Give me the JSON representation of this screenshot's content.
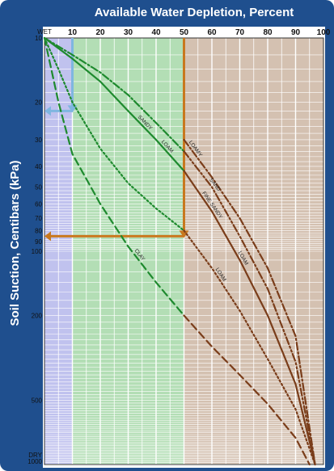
{
  "chart_data": {
    "type": "line",
    "title": "Available Water Depletion, Percent",
    "ylabel": "Soil Suction, Centibars (kPa)",
    "xlabel": "",
    "xlim": [
      0,
      100
    ],
    "x_ticks": [
      10,
      20,
      30,
      40,
      50,
      60,
      70,
      80,
      90,
      100
    ],
    "x_start_label": "WET",
    "ylim": [
      10,
      1000
    ],
    "y_scale": "log",
    "y_ticks": [
      {
        "value": 10,
        "label": "10"
      },
      {
        "value": 20,
        "label": "20"
      },
      {
        "value": 30,
        "label": "30"
      },
      {
        "value": 40,
        "label": "40"
      },
      {
        "value": 50,
        "label": "50"
      },
      {
        "value": 60,
        "label": "60"
      },
      {
        "value": 70,
        "label": "70"
      },
      {
        "value": 80,
        "label": "80"
      },
      {
        "value": 90,
        "label": "90"
      },
      {
        "value": 100,
        "label": "100"
      },
      {
        "value": 200,
        "label": "200"
      },
      {
        "value": 500,
        "label": "500"
      },
      {
        "value": 1000,
        "label": "1000"
      }
    ],
    "y_dry_label": "DRY",
    "series": [
      {
        "name": "SANDY",
        "color": "#1e8a2e",
        "dash": "solid",
        "x": [
          0,
          10,
          20,
          30,
          40,
          50
        ],
        "y": [
          10,
          12.5,
          16,
          22,
          30,
          42
        ]
      },
      {
        "name": "LOAM",
        "color": "#1e8a2e",
        "dash": "dashdot",
        "x": [
          0,
          10,
          20,
          30,
          40,
          50
        ],
        "y": [
          10,
          12,
          14.5,
          18.5,
          25,
          34
        ]
      },
      {
        "name": "CLAY",
        "color": "#1e8a2e",
        "dash": "dash",
        "x": [
          0,
          5,
          10,
          20,
          30,
          40,
          50
        ],
        "y": [
          10,
          20,
          35,
          60,
          95,
          140,
          200
        ]
      },
      {
        "name": "CLAY",
        "color": "#1e8a2e",
        "dash": "dot",
        "x": [
          0,
          5,
          10,
          20,
          30,
          40,
          50
        ],
        "y": [
          10,
          14,
          20,
          33,
          48,
          63,
          80
        ]
      },
      {
        "name": "LOAMY SAND",
        "color": "#7a3d1a",
        "dash": "dashdot",
        "x": [
          50,
          60,
          70,
          80,
          90,
          97
        ],
        "y": [
          30,
          45,
          70,
          120,
          250,
          1000
        ]
      },
      {
        "name": "SAND",
        "color": "#7a3d1a",
        "dash": "dashdotdot",
        "x": [
          50,
          60,
          70,
          80,
          90,
          97
        ],
        "y": [
          34,
          50,
          85,
          150,
          330,
          1000
        ]
      },
      {
        "name": "FINE SANDY LOAM",
        "color": "#7a3d1a",
        "dash": "solid",
        "x": [
          50,
          60,
          70,
          80,
          90,
          97
        ],
        "y": [
          42,
          65,
          110,
          200,
          420,
          1000
        ]
      },
      {
        "name": "LOAM",
        "color": "#7a3d1a",
        "dash": "dot",
        "x": [
          50,
          60,
          70,
          80,
          90,
          97
        ],
        "y": [
          80,
          120,
          190,
          320,
          550,
          1000
        ]
      },
      {
        "name": "CLAY",
        "color": "#7a3d1a",
        "dash": "dash",
        "x": [
          50,
          60,
          70,
          80,
          90,
          95
        ],
        "y": [
          200,
          280,
          380,
          520,
          750,
          1000
        ]
      }
    ],
    "guides": [
      {
        "kind": "vertical",
        "color": "#7fb6e0",
        "x": 10,
        "y": [
          10,
          22
        ]
      },
      {
        "kind": "horizontal",
        "color": "#7fb6e0",
        "x": [
          0,
          10
        ],
        "y": 22
      },
      {
        "kind": "vertical",
        "color": "#c8781e",
        "x": 50,
        "y": [
          10,
          85
        ]
      },
      {
        "kind": "horizontal",
        "color": "#c8781e",
        "x": [
          0,
          50
        ],
        "y": 85
      }
    ],
    "colors": {
      "frame": "#1f4f8e",
      "band_blue": "#8c8fe0",
      "band_green": "#49b04f",
      "band_brown": "#a07552",
      "grid": "#ffffff"
    },
    "labels": [
      {
        "text": "SANDY",
        "series": 0,
        "at": 35
      },
      {
        "text": "LOAM",
        "series": 0,
        "at": 43
      },
      {
        "text": "CLAY",
        "series": 2,
        "at": 33
      },
      {
        "text": "LOAMY",
        "series": 4,
        "at": 53
      },
      {
        "text": "SAND",
        "series": 5,
        "at": 60
      },
      {
        "text": "FINE SANDY",
        "series": 6,
        "at": 59
      },
      {
        "text": "LOAM",
        "series": 6,
        "at": 70
      },
      {
        "text": "LOAM",
        "series": 7,
        "at": 62
      }
    ]
  }
}
